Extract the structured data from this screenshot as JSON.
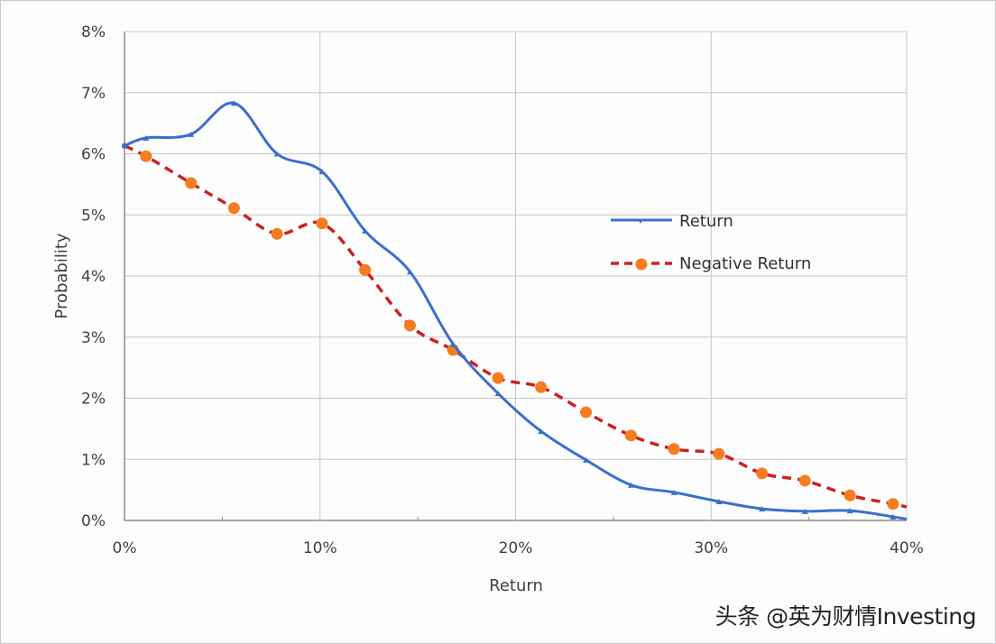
{
  "chart_data": {
    "type": "line",
    "title": "",
    "xlabel": "Return",
    "ylabel": "Probability",
    "xlim": [
      0,
      40
    ],
    "ylim": [
      0,
      8
    ],
    "x_ticks": [
      "0%",
      "10%",
      "20%",
      "30%",
      "40%"
    ],
    "y_ticks": [
      "0%",
      "1%",
      "2%",
      "3%",
      "4%",
      "5%",
      "6%",
      "7%",
      "8%"
    ],
    "grid": true,
    "legend_position": "right-center",
    "series": [
      {
        "name": "Return",
        "color": "#3a6fcc",
        "style": "solid-smooth",
        "marker": "small-triangle",
        "x": [
          0,
          1.1,
          3.4,
          5.6,
          7.8,
          10.1,
          12.3,
          14.6,
          16.8,
          19.1,
          21.3,
          23.6,
          25.9,
          28.1,
          30.4,
          32.6,
          34.8,
          37.1,
          39.3,
          40
        ],
        "values": [
          6.13,
          6.26,
          6.32,
          6.83,
          6.0,
          5.71,
          4.74,
          4.07,
          2.89,
          2.08,
          1.46,
          0.99,
          0.58,
          0.46,
          0.31,
          0.19,
          0.15,
          0.16,
          0.06,
          0.02
        ]
      },
      {
        "name": "Negative Return",
        "color": "#cc2020",
        "marker_color": "#f57c1f",
        "style": "dashed-smooth",
        "marker": "circle",
        "x": [
          0,
          1.1,
          3.4,
          5.6,
          7.8,
          10.1,
          12.3,
          14.6,
          16.8,
          19.1,
          21.3,
          23.6,
          25.9,
          28.1,
          30.4,
          32.6,
          34.8,
          37.1,
          39.3,
          40
        ],
        "values": [
          6.13,
          5.96,
          5.52,
          5.11,
          4.69,
          4.86,
          4.1,
          3.19,
          2.79,
          2.33,
          2.18,
          1.77,
          1.39,
          1.17,
          1.09,
          0.77,
          0.65,
          0.41,
          0.27,
          0.22
        ]
      }
    ]
  },
  "watermark": "头条 @英为财情Investing"
}
